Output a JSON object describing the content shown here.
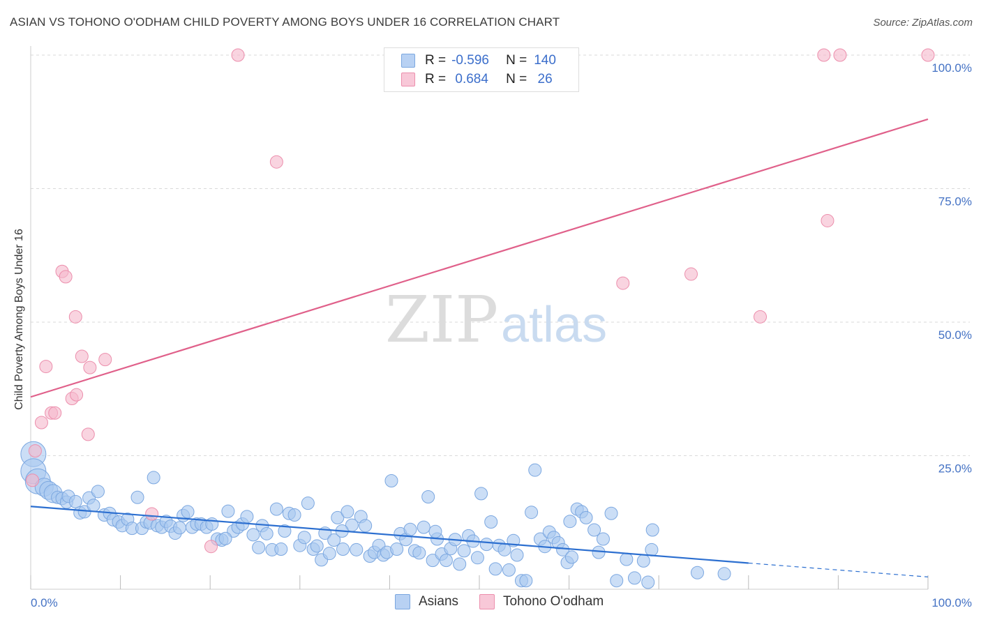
{
  "title": "ASIAN VS TOHONO O'ODHAM CHILD POVERTY AMONG BOYS UNDER 16 CORRELATION CHART",
  "source": "Source: ZipAtlas.com",
  "watermark": {
    "zip": "ZIP",
    "atlas": "atlas"
  },
  "legend": {
    "rows": [
      {
        "r_label": "R =",
        "r_value": "-0.596",
        "n_label": "N =",
        "n_value": "140"
      },
      {
        "r_label": "R =",
        "r_value": " 0.684",
        "n_label": "N =",
        "n_value": " 26"
      }
    ]
  },
  "chart_data": {
    "type": "scatter",
    "ylabel": "Child Poverty Among Boys Under 16",
    "xlim": [
      0,
      100
    ],
    "ylim": [
      0,
      100
    ],
    "x_tick_labels": [
      "0.0%",
      "100.0%"
    ],
    "y_tick_labels": [
      "100.0%",
      "75.0%",
      "50.0%",
      "25.0%"
    ],
    "y_tick_values": [
      100,
      75,
      50,
      25
    ],
    "grid": "horizontal dashed",
    "series": [
      {
        "name": "Asians",
        "color": "#a8c8f0",
        "edge": "#7ba7e0",
        "trend": {
          "x": [
            0,
            80
          ],
          "y": [
            15.5,
            4.9
          ],
          "dashed_to": [
            100,
            2.3
          ],
          "color": "#2c6fd0"
        },
        "points": [
          [
            0.3,
            25.3
          ],
          [
            0.3,
            22.1
          ],
          [
            0.8,
            20.2
          ],
          [
            1.5,
            19.1
          ],
          [
            2,
            18.5
          ],
          [
            2.5,
            17.9
          ],
          [
            3,
            17.2
          ],
          [
            3.5,
            17
          ],
          [
            4,
            16.3
          ],
          [
            4.2,
            17.4
          ],
          [
            5,
            16.4
          ],
          [
            5.5,
            14.3
          ],
          [
            6,
            14.5
          ],
          [
            6.5,
            17.1
          ],
          [
            7,
            15.7
          ],
          [
            7.5,
            18.3
          ],
          [
            8.2,
            13.9
          ],
          [
            8.8,
            14.2
          ],
          [
            9.2,
            13
          ],
          [
            9.8,
            12.6
          ],
          [
            10.2,
            11.9
          ],
          [
            10.8,
            13.1
          ],
          [
            11.3,
            11.4
          ],
          [
            11.9,
            17.2
          ],
          [
            12.4,
            11.4
          ],
          [
            12.9,
            12.6
          ],
          [
            13.3,
            12.4
          ],
          [
            13.7,
            20.9
          ],
          [
            14.1,
            11.9
          ],
          [
            14.6,
            11.6
          ],
          [
            15.1,
            12.7
          ],
          [
            15.6,
            11.8
          ],
          [
            16.1,
            10.5
          ],
          [
            16.6,
            11.5
          ],
          [
            17,
            13.8
          ],
          [
            17.5,
            14.5
          ],
          [
            18,
            11.6
          ],
          [
            18.5,
            12.2
          ],
          [
            19,
            12.2
          ],
          [
            19.6,
            11.6
          ],
          [
            20.2,
            12.2
          ],
          [
            20.8,
            9.4
          ],
          [
            21.3,
            9.2
          ],
          [
            22,
            14.6
          ],
          [
            22.6,
            10.9
          ],
          [
            23.1,
            11.6
          ],
          [
            23.6,
            12.2
          ],
          [
            24.1,
            13.6
          ],
          [
            24.8,
            10.2
          ],
          [
            25.4,
            7.8
          ],
          [
            25.8,
            11.9
          ],
          [
            26.3,
            10.4
          ],
          [
            26.9,
            7.4
          ],
          [
            27.4,
            15
          ],
          [
            27.9,
            7.5
          ],
          [
            28.3,
            10.9
          ],
          [
            28.8,
            14.2
          ],
          [
            29.4,
            13.9
          ],
          [
            30,
            8.2
          ],
          [
            30.5,
            9.7
          ],
          [
            30.9,
            16.1
          ],
          [
            31.5,
            7.5
          ],
          [
            31.9,
            8.1
          ],
          [
            32.4,
            5.5
          ],
          [
            32.8,
            10.5
          ],
          [
            33.3,
            6.7
          ],
          [
            33.8,
            9.2
          ],
          [
            34.2,
            13.4
          ],
          [
            34.8,
            7.5
          ],
          [
            35.3,
            14.5
          ],
          [
            35.8,
            12
          ],
          [
            36.3,
            7.4
          ],
          [
            36.8,
            13.6
          ],
          [
            37.3,
            11.9
          ],
          [
            37.8,
            6.2
          ],
          [
            38.3,
            6.9
          ],
          [
            38.8,
            8.2
          ],
          [
            39.3,
            6.4
          ],
          [
            39.7,
            6.9
          ],
          [
            40.2,
            20.3
          ],
          [
            40.8,
            7.5
          ],
          [
            41.2,
            10.4
          ],
          [
            41.8,
            9.3
          ],
          [
            42.3,
            11.2
          ],
          [
            42.8,
            7.2
          ],
          [
            43.3,
            6.8
          ],
          [
            43.8,
            11.6
          ],
          [
            44.3,
            17.3
          ],
          [
            44.8,
            5.4
          ],
          [
            45.3,
            9.4
          ],
          [
            45.8,
            6.6
          ],
          [
            46.3,
            5.4
          ],
          [
            46.8,
            7.6
          ],
          [
            47.3,
            9.3
          ],
          [
            47.8,
            4.7
          ],
          [
            48.3,
            7.2
          ],
          [
            48.8,
            10
          ],
          [
            49.3,
            9
          ],
          [
            49.8,
            5.9
          ],
          [
            50.2,
            17.9
          ],
          [
            50.8,
            8.4
          ],
          [
            51.3,
            12.6
          ],
          [
            51.8,
            3.8
          ],
          [
            52.2,
            8.2
          ],
          [
            52.8,
            7.4
          ],
          [
            53.3,
            3.6
          ],
          [
            53.8,
            9.1
          ],
          [
            54.2,
            6.4
          ],
          [
            54.7,
            1.6
          ],
          [
            55.2,
            1.6
          ],
          [
            55.8,
            14.4
          ],
          [
            56.2,
            22.3
          ],
          [
            56.8,
            9.4
          ],
          [
            57.3,
            8
          ],
          [
            57.8,
            10.7
          ],
          [
            58.3,
            9.7
          ],
          [
            58.8,
            8.7
          ],
          [
            59.3,
            7.4
          ],
          [
            59.8,
            5
          ],
          [
            60.3,
            6
          ],
          [
            60.9,
            15
          ],
          [
            61.4,
            14.5
          ],
          [
            61.9,
            13.4
          ],
          [
            62.8,
            11.1
          ],
          [
            63.3,
            6.9
          ],
          [
            63.8,
            9.4
          ],
          [
            64.7,
            14.2
          ],
          [
            65.3,
            1.6
          ],
          [
            66.4,
            5.6
          ],
          [
            67.3,
            2.1
          ],
          [
            68.3,
            5.3
          ],
          [
            69.3,
            11.1
          ],
          [
            69.2,
            7.4
          ],
          [
            74.3,
            3.1
          ],
          [
            77.3,
            2.9
          ],
          [
            68.8,
            1.3
          ],
          [
            21.7,
            9.5
          ],
          [
            34.7,
            10.9
          ],
          [
            45.1,
            10.8
          ],
          [
            60.1,
            12.7
          ]
        ]
      },
      {
        "name": "Tohono O'odham",
        "color": "#f5b8cc",
        "edge": "#ec8eac",
        "trend": {
          "x": [
            0,
            100
          ],
          "y": [
            36,
            88
          ],
          "color": "#e0608a"
        },
        "points": [
          [
            23.1,
            100
          ],
          [
            88.4,
            100
          ],
          [
            90.2,
            100
          ],
          [
            100,
            100
          ],
          [
            27.4,
            80
          ],
          [
            88.8,
            69
          ],
          [
            3.5,
            59.5
          ],
          [
            3.9,
            58.5
          ],
          [
            66,
            57.3
          ],
          [
            73.6,
            59
          ],
          [
            5.0,
            51
          ],
          [
            81.3,
            51
          ],
          [
            1.7,
            41.7
          ],
          [
            5.7,
            43.6
          ],
          [
            6.6,
            41.5
          ],
          [
            8.3,
            43
          ],
          [
            4.6,
            35.7
          ],
          [
            5.1,
            36.4
          ],
          [
            2.3,
            33
          ],
          [
            2.7,
            33
          ],
          [
            1.2,
            31.2
          ],
          [
            6.4,
            29
          ],
          [
            0.5,
            25.9
          ],
          [
            0.2,
            20.4
          ],
          [
            13.5,
            14.1
          ],
          [
            20.1,
            8
          ]
        ]
      }
    ]
  }
}
